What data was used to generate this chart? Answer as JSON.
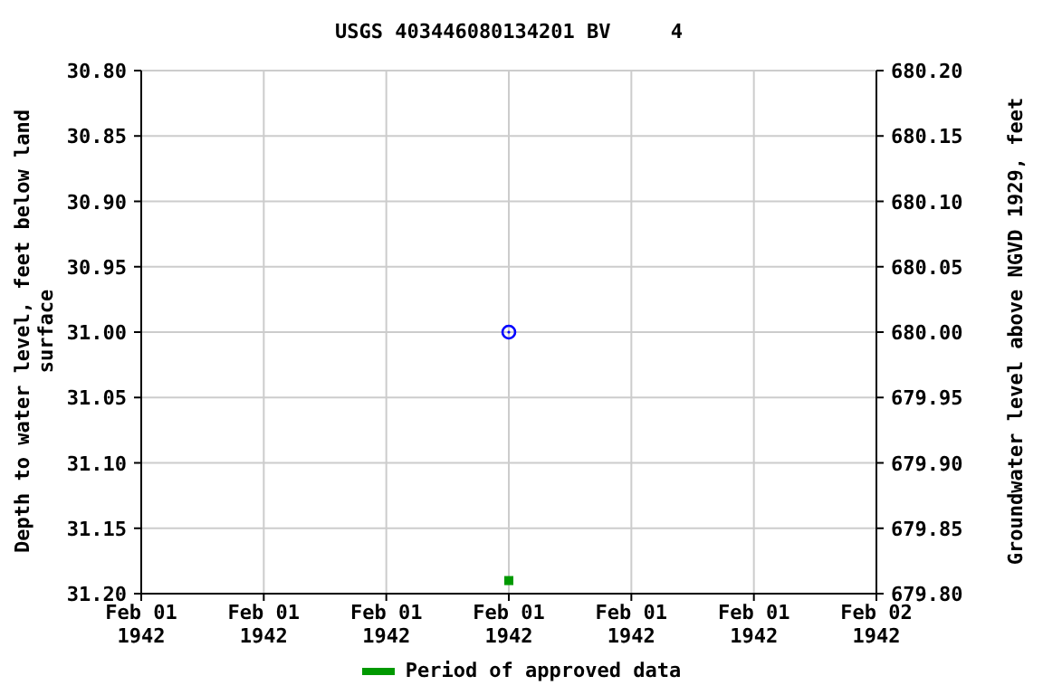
{
  "chart_data": {
    "type": "scatter",
    "title": "USGS 403446080134201 BV     4",
    "xlabel": null,
    "ylabel": "Depth to water level, feet below land\nsurface",
    "y2label": "Groundwater level above NGVD 1929, feet",
    "series": [
      {
        "color": "#0000ff",
        "marker": "circle",
        "x": [
          "1942-02-01T12:00"
        ],
        "values": [
          31.0
        ]
      },
      {
        "name": "Period of approved data",
        "color": "#009900",
        "marker": "square",
        "x": [
          "1942-02-01T12:00"
        ],
        "values": [
          31.19
        ]
      }
    ],
    "xlim": [
      "1942-02-01T00:00",
      "1942-02-02T00:00"
    ],
    "xticks": [
      {
        "value": "1942-02-01T00:00",
        "label": "Feb 01\n1942"
      },
      {
        "value": "1942-02-01T04:00",
        "label": "Feb 01\n1942"
      },
      {
        "value": "1942-02-01T08:00",
        "label": "Feb 01\n1942"
      },
      {
        "value": "1942-02-01T12:00",
        "label": "Feb 01\n1942"
      },
      {
        "value": "1942-02-01T16:00",
        "label": "Feb 01\n1942"
      },
      {
        "value": "1942-02-01T20:00",
        "label": "Feb 01\n1942"
      },
      {
        "value": "1942-02-02T00:00",
        "label": "Feb 02\n1942"
      }
    ],
    "ylim": [
      31.2,
      30.8
    ],
    "yticks": [
      {
        "value": 30.8,
        "label": "30.80"
      },
      {
        "value": 30.85,
        "label": "30.85"
      },
      {
        "value": 30.9,
        "label": "30.90"
      },
      {
        "value": 30.95,
        "label": "30.95"
      },
      {
        "value": 31.0,
        "label": "31.00"
      },
      {
        "value": 31.05,
        "label": "31.05"
      },
      {
        "value": 31.1,
        "label": "31.10"
      },
      {
        "value": 31.15,
        "label": "31.15"
      },
      {
        "value": 31.2,
        "label": "31.20"
      }
    ],
    "y2lim": [
      679.8,
      680.2
    ],
    "y2ticks": [
      {
        "value": 680.2,
        "label": "680.20"
      },
      {
        "value": 680.15,
        "label": "680.15"
      },
      {
        "value": 680.1,
        "label": "680.10"
      },
      {
        "value": 680.05,
        "label": "680.05"
      },
      {
        "value": 680.0,
        "label": "680.00"
      },
      {
        "value": 679.95,
        "label": "679.95"
      },
      {
        "value": 679.9,
        "label": "679.90"
      },
      {
        "value": 679.85,
        "label": "679.85"
      },
      {
        "value": 679.8,
        "label": "679.80"
      }
    ],
    "grid": true,
    "legend": "bottom"
  }
}
